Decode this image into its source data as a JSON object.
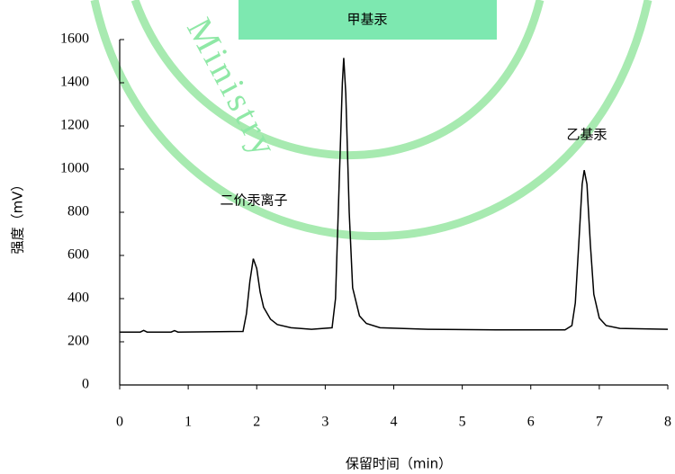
{
  "chart_data": {
    "type": "line",
    "watermark": "Ministry",
    "annotations": [
      "甲基汞",
      "二价汞离子",
      "乙基汞"
    ],
    "xlabel": "保留时间（min）",
    "ylabel": "强度（mV）",
    "x": [
      0,
      0.3,
      0.35,
      0.4,
      0.75,
      0.8,
      0.85,
      1.8,
      1.85,
      1.9,
      1.95,
      2.0,
      2.05,
      2.1,
      2.2,
      2.3,
      2.5,
      2.8,
      3.1,
      3.15,
      3.2,
      3.25,
      3.27,
      3.3,
      3.35,
      3.4,
      3.5,
      3.6,
      3.8,
      4.5,
      5.5,
      6.5,
      6.6,
      6.65,
      6.7,
      6.75,
      6.78,
      6.82,
      6.87,
      6.92,
      7.0,
      7.1,
      7.3,
      8.0
    ],
    "series": [
      {
        "color": "#000000",
        "values": [
          245,
          245,
          253,
          245,
          245,
          252,
          245,
          248,
          330,
          480,
          585,
          540,
          430,
          360,
          305,
          280,
          265,
          258,
          265,
          400,
          900,
          1400,
          1515,
          1350,
          800,
          450,
          320,
          285,
          265,
          258,
          255,
          255,
          275,
          380,
          650,
          930,
          995,
          930,
          650,
          420,
          310,
          275,
          262,
          258
        ]
      }
    ],
    "xlim": [
      0,
      8
    ],
    "xticks": [
      0,
      1,
      2,
      3,
      4,
      5,
      6,
      7,
      8
    ],
    "ylim": [
      0,
      1600
    ],
    "yticks": [
      0,
      200,
      400,
      600,
      800,
      1000,
      1200,
      1400,
      1600
    ]
  }
}
